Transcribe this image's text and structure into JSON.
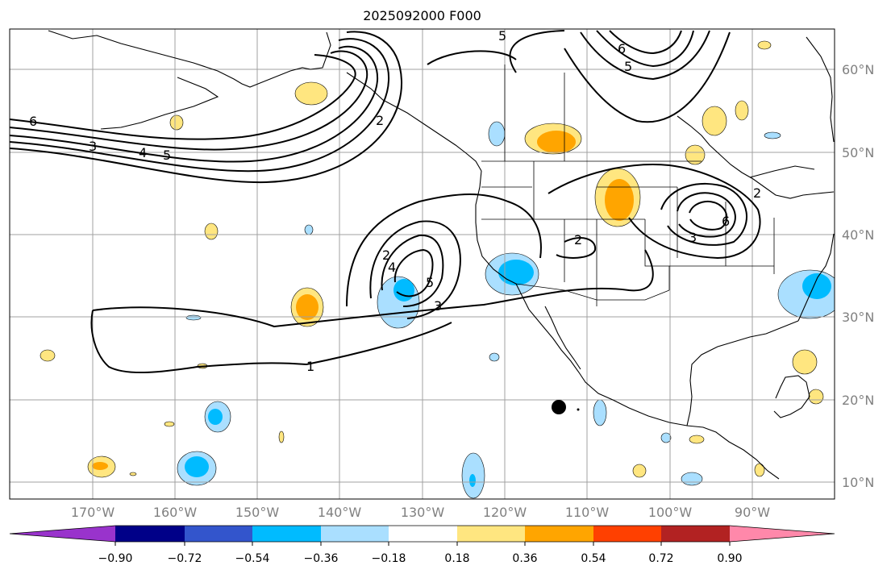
{
  "title": "2025092000 F000",
  "map": {
    "lat_labels": [
      "60°N",
      "50°N",
      "40°N",
      "30°N",
      "20°N",
      "10°N"
    ],
    "lon_labels": [
      "170°W",
      "160°W",
      "150°W",
      "140°W",
      "130°W",
      "120°W",
      "110°W",
      "100°W",
      "90°W"
    ],
    "contour_labels": [
      "1",
      "2",
      "2",
      "2",
      "2",
      "3",
      "3",
      "3",
      "4",
      "4",
      "5",
      "5",
      "5",
      "5",
      "6",
      "6",
      "6"
    ],
    "storm_marker": "tropical-cyclone-dot"
  },
  "colorbar": {
    "colors": [
      "#9933cc",
      "#000088",
      "#3355cc",
      "#00bbff",
      "#aadfff",
      "#ffffff",
      "#ffe680",
      "#ffa500",
      "#ff4000",
      "#b22222",
      "#ff88aa"
    ],
    "ticks": [
      "−0.90",
      "−0.72",
      "−0.54",
      "−0.36",
      "−0.18",
      "0.18",
      "0.36",
      "0.54",
      "0.72",
      "0.90"
    ]
  }
}
